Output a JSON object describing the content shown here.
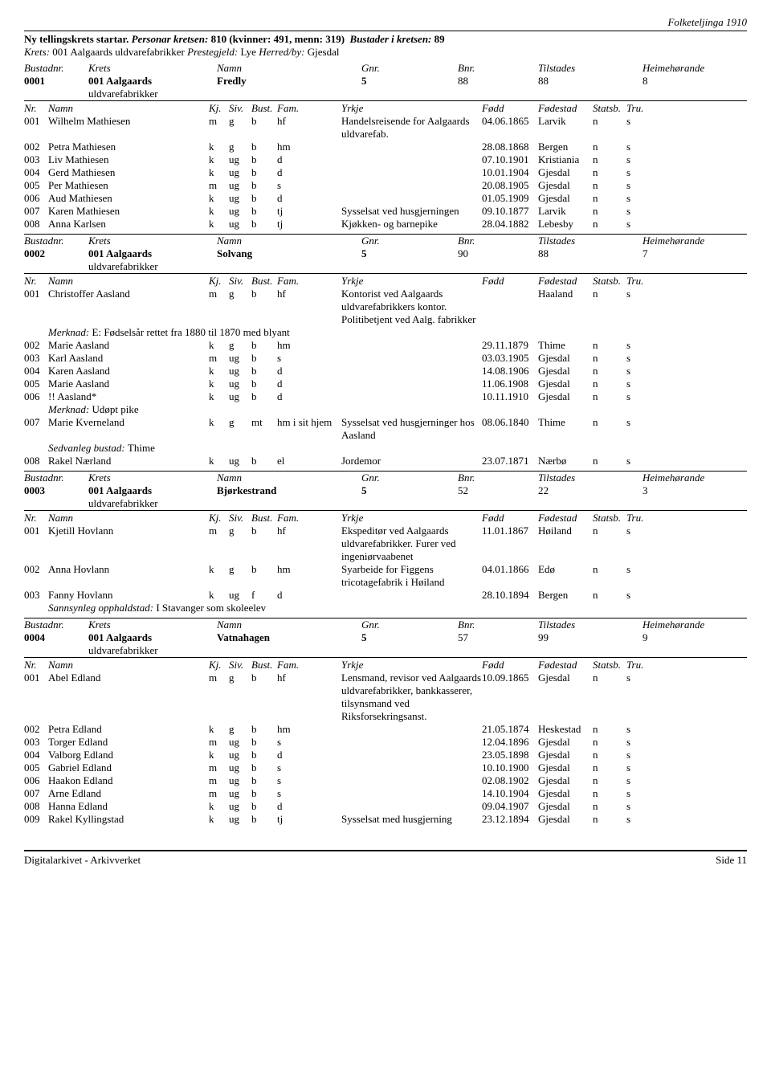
{
  "header_right": "Folketeljinga 1910",
  "intro": {
    "l1a": "Ny tellingskrets startar.",
    "l1b": "Personar kretsen:",
    "l1c": "810 (kvinner: 491, menn: 319)",
    "l1d": "Bustader i kretsen:",
    "l1e": "89",
    "l2a": "Krets:",
    "l2b": "001 Aalgaards uldvarefabrikker",
    "l2c": "Prestegjeld:",
    "l2d": "Lye",
    "l2e": "Herred/by:",
    "l2f": "Gjesdal"
  },
  "labels": {
    "bustadnr": "Bustadnr.",
    "krets": "Krets",
    "namn": "Namn",
    "gnr": "Gnr.",
    "bnr": "Bnr.",
    "tilstades": "Tilstades",
    "heimehorande": "Heimehørande",
    "nr": "Nr.",
    "kj": "Kj.",
    "siv": "Siv.",
    "bust": "Bust.",
    "fam": "Fam.",
    "yrkje": "Yrkje",
    "fodd": "Fødd",
    "fodestad": "Fødestad",
    "statsb": "Statsb.",
    "tru": "Tru.",
    "merknad": "Merknad:",
    "sedvanleg": "Sedvanleg bustad:",
    "sannsynleg": "Sannsynleg opphaldstad:"
  },
  "krets_name": "001 Aalgaards",
  "krets_sub": "uldvarefabrikker",
  "bustader": [
    {
      "nr": "0001",
      "namn": "Fredly",
      "gnr": "5",
      "bnr": "88",
      "til": "88",
      "heim": "8",
      "persons": [
        {
          "nr": "001",
          "namn": "Wilhelm Mathiesen",
          "kj": "m",
          "siv": "g",
          "bust": "b",
          "fam": "hf",
          "yrkje": "Handelsreisende for Aalgaards uldvarefab.",
          "fodd": "04.06.1865",
          "fodestad": "Larvik",
          "statsb": "n",
          "tru": "s"
        },
        {
          "nr": "002",
          "namn": "Petra Mathiesen",
          "kj": "k",
          "siv": "g",
          "bust": "b",
          "fam": "hm",
          "yrkje": "",
          "fodd": "28.08.1868",
          "fodestad": "Bergen",
          "statsb": "n",
          "tru": "s"
        },
        {
          "nr": "003",
          "namn": "Liv Mathiesen",
          "kj": "k",
          "siv": "ug",
          "bust": "b",
          "fam": "d",
          "yrkje": "",
          "fodd": "07.10.1901",
          "fodestad": "Kristiania",
          "statsb": "n",
          "tru": "s"
        },
        {
          "nr": "004",
          "namn": "Gerd Mathiesen",
          "kj": "k",
          "siv": "ug",
          "bust": "b",
          "fam": "d",
          "yrkje": "",
          "fodd": "10.01.1904",
          "fodestad": "Gjesdal",
          "statsb": "n",
          "tru": "s"
        },
        {
          "nr": "005",
          "namn": "Per Mathiesen",
          "kj": "m",
          "siv": "ug",
          "bust": "b",
          "fam": "s",
          "yrkje": "",
          "fodd": "20.08.1905",
          "fodestad": "Gjesdal",
          "statsb": "n",
          "tru": "s"
        },
        {
          "nr": "006",
          "namn": "Aud Mathiesen",
          "kj": "k",
          "siv": "ug",
          "bust": "b",
          "fam": "d",
          "yrkje": "",
          "fodd": "01.05.1909",
          "fodestad": "Gjesdal",
          "statsb": "n",
          "tru": "s"
        },
        {
          "nr": "007",
          "namn": "Karen Mathiesen",
          "kj": "k",
          "siv": "ug",
          "bust": "b",
          "fam": "tj",
          "yrkje": "Sysselsat ved husgjerningen",
          "fodd": "09.10.1877",
          "fodestad": "Larvik",
          "statsb": "n",
          "tru": "s"
        },
        {
          "nr": "008",
          "namn": "Anna Karlsen",
          "kj": "k",
          "siv": "ug",
          "bust": "b",
          "fam": "tj",
          "yrkje": "Kjøkken- og barnepike",
          "fodd": "28.04.1882",
          "fodestad": "Lebesby",
          "statsb": "n",
          "tru": "s"
        }
      ]
    },
    {
      "nr": "0002",
      "namn": "Solvang",
      "gnr": "5",
      "bnr": "90",
      "til": "88",
      "heim": "7",
      "persons": [
        {
          "nr": "001",
          "namn": "Christoffer Aasland",
          "kj": "m",
          "siv": "g",
          "bust": "b",
          "fam": "hf",
          "yrkje": "Kontorist ved Aalgaards uldvarefabrikkers kontor. Politibetjent ved Aalg. fabrikker",
          "fodd": "",
          "fodestad": "Haaland",
          "statsb": "n",
          "tru": "s",
          "merknad": "E: Fødselsår rettet fra 1880 til 1870 med blyant"
        },
        {
          "nr": "002",
          "namn": "Marie Aasland",
          "kj": "k",
          "siv": "g",
          "bust": "b",
          "fam": "hm",
          "yrkje": "",
          "fodd": "29.11.1879",
          "fodestad": "Thime",
          "statsb": "n",
          "tru": "s"
        },
        {
          "nr": "003",
          "namn": "Karl Aasland",
          "kj": "m",
          "siv": "ug",
          "bust": "b",
          "fam": "s",
          "yrkje": "",
          "fodd": "03.03.1905",
          "fodestad": "Gjesdal",
          "statsb": "n",
          "tru": "s"
        },
        {
          "nr": "004",
          "namn": "Karen Aasland",
          "kj": "k",
          "siv": "ug",
          "bust": "b",
          "fam": "d",
          "yrkje": "",
          "fodd": "14.08.1906",
          "fodestad": "Gjesdal",
          "statsb": "n",
          "tru": "s"
        },
        {
          "nr": "005",
          "namn": "Marie Aasland",
          "kj": "k",
          "siv": "ug",
          "bust": "b",
          "fam": "d",
          "yrkje": "",
          "fodd": "11.06.1908",
          "fodestad": "Gjesdal",
          "statsb": "n",
          "tru": "s"
        },
        {
          "nr": "006",
          "namn": "!! Aasland*",
          "kj": "k",
          "siv": "ug",
          "bust": "b",
          "fam": "d",
          "yrkje": "",
          "fodd": "10.11.1910",
          "fodestad": "Gjesdal",
          "statsb": "n",
          "tru": "s",
          "merknad": "Udøpt pike"
        },
        {
          "nr": "007",
          "namn": "Marie Kverneland",
          "kj": "k",
          "siv": "g",
          "bust": "mt",
          "fam": "hm i sit hjem",
          "yrkje": "Sysselsat ved husgjerninger hos Aasland",
          "fodd": "08.06.1840",
          "fodestad": "Thime",
          "statsb": "n",
          "tru": "s",
          "sedvanleg": "Thime"
        },
        {
          "nr": "008",
          "namn": "Rakel Nærland",
          "kj": "k",
          "siv": "ug",
          "bust": "b",
          "fam": "el",
          "yrkje": "Jordemor",
          "fodd": "23.07.1871",
          "fodestad": "Nærbø",
          "statsb": "n",
          "tru": "s"
        }
      ]
    },
    {
      "nr": "0003",
      "namn": "Bjørkestrand",
      "gnr": "5",
      "bnr": "52",
      "til": "22",
      "heim": "3",
      "persons": [
        {
          "nr": "001",
          "namn": "Kjetill Hovlann",
          "kj": "m",
          "siv": "g",
          "bust": "b",
          "fam": "hf",
          "yrkje": "Ekspeditør ved Aalgaards uldvarefabrikker. Furer ved ingeniørvaabenet",
          "fodd": "11.01.1867",
          "fodestad": "Høiland",
          "statsb": "n",
          "tru": "s"
        },
        {
          "nr": "002",
          "namn": "Anna Hovlann",
          "kj": "k",
          "siv": "g",
          "bust": "b",
          "fam": "hm",
          "yrkje": "Syarbeide for Figgens tricotagefabrik i Høiland",
          "fodd": "04.01.1866",
          "fodestad": "Edø",
          "statsb": "n",
          "tru": "s"
        },
        {
          "nr": "003",
          "namn": "Fanny Hovlann",
          "kj": "k",
          "siv": "ug",
          "bust": "f",
          "fam": "d",
          "yrkje": "",
          "fodd": "28.10.1894",
          "fodestad": "Bergen",
          "statsb": "n",
          "tru": "s",
          "sannsynleg": "I Stavanger som skoleelev"
        }
      ]
    },
    {
      "nr": "0004",
      "namn": "Vatnahagen",
      "gnr": "5",
      "bnr": "57",
      "til": "99",
      "heim": "9",
      "persons": [
        {
          "nr": "001",
          "namn": "Abel Edland",
          "kj": "m",
          "siv": "g",
          "bust": "b",
          "fam": "hf",
          "yrkje": "Lensmand, revisor ved Aalgaards uldvarefabrikker, bankkasserer, tilsynsmand ved Riksforsekringsanst.",
          "fodd": "10.09.1865",
          "fodestad": "Gjesdal",
          "statsb": "n",
          "tru": "s"
        },
        {
          "nr": "002",
          "namn": "Petra Edland",
          "kj": "k",
          "siv": "g",
          "bust": "b",
          "fam": "hm",
          "yrkje": "",
          "fodd": "21.05.1874",
          "fodestad": "Heskestad",
          "statsb": "n",
          "tru": "s"
        },
        {
          "nr": "003",
          "namn": "Torger Edland",
          "kj": "m",
          "siv": "ug",
          "bust": "b",
          "fam": "s",
          "yrkje": "",
          "fodd": "12.04.1896",
          "fodestad": "Gjesdal",
          "statsb": "n",
          "tru": "s"
        },
        {
          "nr": "004",
          "namn": "Valborg Edland",
          "kj": "k",
          "siv": "ug",
          "bust": "b",
          "fam": "d",
          "yrkje": "",
          "fodd": "23.05.1898",
          "fodestad": "Gjesdal",
          "statsb": "n",
          "tru": "s"
        },
        {
          "nr": "005",
          "namn": "Gabriel Edland",
          "kj": "m",
          "siv": "ug",
          "bust": "b",
          "fam": "s",
          "yrkje": "",
          "fodd": "10.10.1900",
          "fodestad": "Gjesdal",
          "statsb": "n",
          "tru": "s"
        },
        {
          "nr": "006",
          "namn": "Haakon Edland",
          "kj": "m",
          "siv": "ug",
          "bust": "b",
          "fam": "s",
          "yrkje": "",
          "fodd": "02.08.1902",
          "fodestad": "Gjesdal",
          "statsb": "n",
          "tru": "s"
        },
        {
          "nr": "007",
          "namn": "Arne Edland",
          "kj": "m",
          "siv": "ug",
          "bust": "b",
          "fam": "s",
          "yrkje": "",
          "fodd": "14.10.1904",
          "fodestad": "Gjesdal",
          "statsb": "n",
          "tru": "s"
        },
        {
          "nr": "008",
          "namn": "Hanna Edland",
          "kj": "k",
          "siv": "ug",
          "bust": "b",
          "fam": "d",
          "yrkje": "",
          "fodd": "09.04.1907",
          "fodestad": "Gjesdal",
          "statsb": "n",
          "tru": "s"
        },
        {
          "nr": "009",
          "namn": "Rakel Kyllingstad",
          "kj": "k",
          "siv": "ug",
          "bust": "b",
          "fam": "tj",
          "yrkje": "Sysselsat med husgjerning",
          "fodd": "23.12.1894",
          "fodestad": "Gjesdal",
          "statsb": "n",
          "tru": "s"
        }
      ]
    }
  ],
  "footer": {
    "left": "Digitalarkivet - Arkivverket",
    "right": "Side 11"
  }
}
